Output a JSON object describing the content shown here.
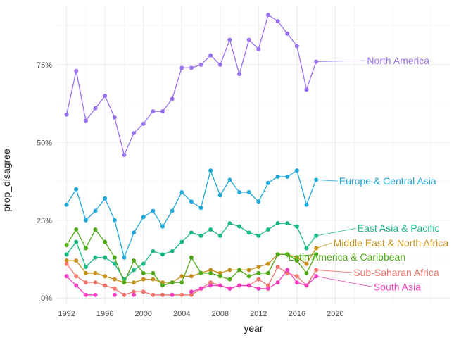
{
  "chart_data": {
    "type": "line",
    "xlabel": "year",
    "ylabel": "prop_disagree",
    "xlim": [
      1991,
      2032
    ],
    "ylim": [
      -0.02,
      0.94
    ],
    "x_ticks": [
      1992,
      1996,
      2000,
      2004,
      2008,
      2012,
      2016,
      2020
    ],
    "y_ticks": [
      {
        "value": 0.0,
        "label": "0%"
      },
      {
        "value": 0.25,
        "label": "25%"
      },
      {
        "value": 0.5,
        "label": "50%"
      },
      {
        "value": 0.75,
        "label": "75%"
      }
    ],
    "grid": true,
    "legend": "direct labels at right",
    "x": [
      1992,
      1993,
      1994,
      1995,
      1996,
      1997,
      1998,
      1999,
      2000,
      2001,
      2002,
      2003,
      2004,
      2005,
      2006,
      2007,
      2008,
      2009,
      2010,
      2011,
      2012,
      2013,
      2014,
      2015,
      2016,
      2017,
      2018
    ],
    "series": [
      {
        "name": "North America",
        "color": "#9A72F0",
        "values": [
          0.59,
          0.73,
          0.57,
          0.61,
          0.65,
          0.58,
          0.46,
          0.53,
          0.56,
          0.6,
          0.6,
          0.64,
          0.74,
          0.74,
          0.75,
          0.78,
          0.75,
          0.83,
          0.72,
          0.83,
          0.8,
          0.91,
          0.89,
          0.85,
          0.81,
          0.67,
          0.76
        ],
        "label_at": {
          "x": 2023.3,
          "y": 0.763
        }
      },
      {
        "name": "Europe & Central Asia",
        "color": "#1FA8D8",
        "values": [
          0.3,
          0.35,
          0.25,
          0.28,
          0.32,
          0.25,
          0.13,
          0.21,
          0.26,
          0.28,
          0.23,
          0.28,
          0.34,
          0.31,
          0.29,
          0.41,
          0.33,
          0.38,
          0.34,
          0.34,
          0.31,
          0.37,
          0.39,
          0.39,
          0.41,
          0.3,
          0.38
        ],
        "label_at": {
          "x": 2020.4,
          "y": 0.376
        }
      },
      {
        "name": "East Asia & Pacific",
        "color": "#1AB886",
        "values": [
          0.14,
          0.18,
          0.1,
          0.13,
          0.13,
          0.11,
          0.06,
          0.09,
          0.11,
          0.15,
          0.14,
          0.15,
          0.18,
          0.21,
          0.2,
          0.22,
          0.2,
          0.24,
          0.23,
          0.21,
          0.2,
          0.22,
          0.24,
          0.24,
          0.23,
          0.16,
          0.2
        ],
        "label_at": {
          "x": 2022.3,
          "y": 0.224
        }
      },
      {
        "name": "Middle East & North Africa",
        "color": "#C4901A",
        "values": [
          0.12,
          0.12,
          0.08,
          0.08,
          0.07,
          0.06,
          0.05,
          0.05,
          0.06,
          0.06,
          0.05,
          0.05,
          0.07,
          0.07,
          0.08,
          0.09,
          0.08,
          0.09,
          0.09,
          0.09,
          0.1,
          0.11,
          0.14,
          0.14,
          0.13,
          0.11,
          0.16
        ],
        "label_at": {
          "x": 2019.8,
          "y": 0.177
        }
      },
      {
        "name": "Latin America & Caribbean",
        "color": "#4FAA18",
        "values": [
          0.17,
          0.22,
          0.16,
          0.22,
          0.18,
          0.13,
          0.05,
          0.12,
          0.08,
          0.08,
          0.04,
          0.05,
          0.05,
          0.13,
          0.08,
          0.08,
          0.07,
          0.06,
          0.09,
          0.07,
          0.08,
          0.08,
          0.14,
          0.14,
          0.12,
          0.08,
          0.14
        ],
        "label_at": {
          "x": 2015.1,
          "y": 0.132
        }
      },
      {
        "name": "Sub-Saharan Africa",
        "color": "#F0766C",
        "values": [
          0.11,
          0.07,
          0.05,
          0.05,
          0.04,
          0.03,
          0.01,
          0.02,
          0.02,
          0.01,
          0.01,
          0.01,
          0.01,
          0.01,
          0.03,
          0.05,
          0.04,
          0.03,
          0.04,
          0.04,
          0.06,
          0.04,
          0.1,
          0.08,
          0.07,
          0.04,
          0.09
        ],
        "label_at": {
          "x": 2021.9,
          "y": 0.082
        }
      },
      {
        "name": "South Asia",
        "color": "#F23DBE",
        "values": [
          0.07,
          0.04,
          0.01,
          0.01,
          null,
          0.01,
          null,
          0.01,
          null,
          null,
          null,
          0.01,
          null,
          0.02,
          0.03,
          0.04,
          0.04,
          0.03,
          0.04,
          0.04,
          0.03,
          0.03,
          0.05,
          0.09,
          0.05,
          0.04,
          0.07
        ],
        "label_at": {
          "x": 2024.0,
          "y": 0.036
        }
      }
    ]
  }
}
